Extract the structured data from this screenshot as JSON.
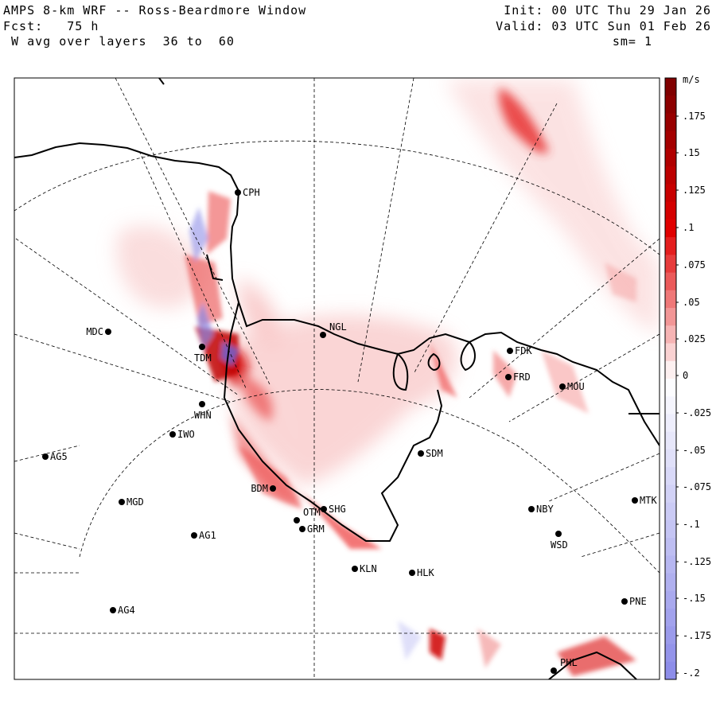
{
  "header": {
    "title": "AMPS 8-km WRF -- Ross-Beardmore Window",
    "fcst": "Fcst:   75 h",
    "layers": " W avg over layers  36 to  60",
    "init": "Init: 00 UTC Thu 29 Jan 26",
    "valid": "Valid: 03 UTC Sun 01 Feb 26",
    "smoothing": "sm= 1"
  },
  "colorbar": {
    "units": "m/s",
    "labels": [
      ".175",
      ".15",
      ".125",
      ".1",
      ".075",
      ".05",
      ".025",
      "0",
      "-.025",
      "-.05",
      "-.075",
      "-.1",
      "-.125",
      "-.15",
      "-.175",
      "-.2"
    ],
    "max_color": "#7a0000",
    "positive_color": "#e00000",
    "zero_color": "#ffffff",
    "negative_color": "#8a8ae8"
  },
  "stations": [
    {
      "code": "CPH"
    },
    {
      "code": "MDC"
    },
    {
      "code": "TDM"
    },
    {
      "code": "NGL"
    },
    {
      "code": "FDK"
    },
    {
      "code": "FRD"
    },
    {
      "code": "MOU"
    },
    {
      "code": "WHN"
    },
    {
      "code": "IWO"
    },
    {
      "code": "AG5"
    },
    {
      "code": "SDM"
    },
    {
      "code": "MGD"
    },
    {
      "code": "BDM"
    },
    {
      "code": "SHG"
    },
    {
      "code": "OTM"
    },
    {
      "code": "GRM"
    },
    {
      "code": "AG1"
    },
    {
      "code": "NBY"
    },
    {
      "code": "MTK"
    },
    {
      "code": "WSD"
    },
    {
      "code": "KLN"
    },
    {
      "code": "HLK"
    },
    {
      "code": "AG4"
    },
    {
      "code": "PNE"
    },
    {
      "code": "PHL"
    }
  ]
}
